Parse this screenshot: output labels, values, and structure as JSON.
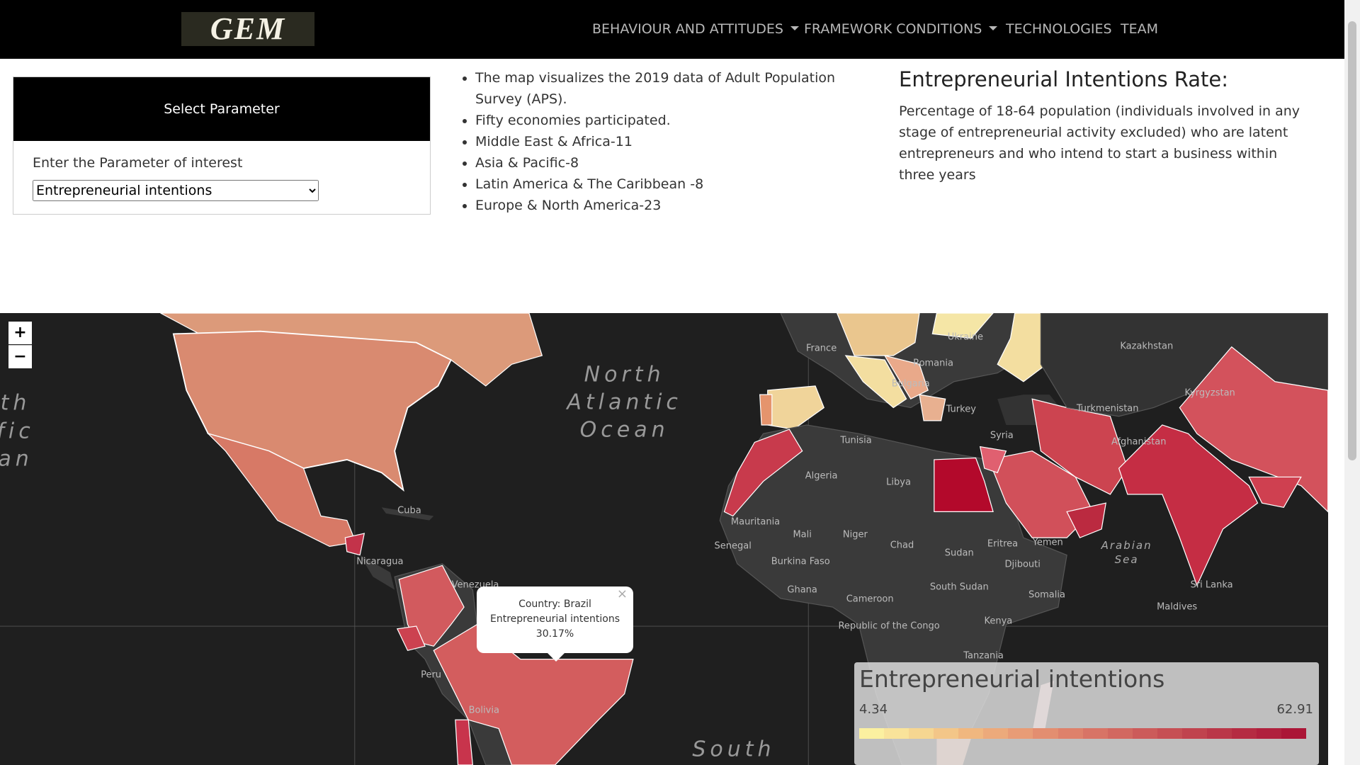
{
  "navbar": {
    "logo": "GEM",
    "items": [
      "BEHAVIOUR AND ATTITUDES",
      "FRAMEWORK CONDITIONS",
      "TECHNOLOGIES",
      "TEAM"
    ]
  },
  "panel": {
    "header": "Select Parameter",
    "label": "Enter the Parameter of interest",
    "selected": "Entrepreneurial intentions"
  },
  "info": {
    "bullets": [
      "The map visualizes the 2019 data of Adult Population Survey (APS).",
      "Fifty economies participated.",
      "Middle East & Africa-11",
      "Asia & Pacific-8",
      "Latin America & The Caribbean -8",
      "Europe & North America-23"
    ]
  },
  "definition": {
    "title": "Entrepreneurial Intentions Rate:",
    "text": "Percentage of 18-64 population (individuals involved in any stage of entrepreneurial activity excluded) who are latent entrepreneurs and who intend to start a business within three years"
  },
  "map": {
    "zoom_in": "+",
    "zoom_out": "−",
    "labels": [
      "North",
      "Atlantic",
      "Ocean",
      "th",
      "fic",
      "an",
      "Ukraine",
      "Kazakhstan",
      "France",
      "Romania",
      "Bulgaria",
      "Turkey",
      "Turkmenistan",
      "Kyrgyzstan",
      "Afghanistan",
      "Syria",
      "Tunisia",
      "Algeria",
      "Libya",
      "Mauritania",
      "Mali",
      "Niger",
      "Chad",
      "Sudan",
      "Senegal",
      "Cuba",
      "Nicaragua",
      "Venezuela",
      "Bolivia",
      "Yemen",
      "Eritrea",
      "Djibouti",
      "Somalia",
      "South Sudan",
      "Cameroon",
      "Kenya",
      "Tanzania",
      "Arabian",
      "Sea",
      "Sri Lanka",
      "Maldives",
      "South",
      "Peru",
      "Burkina Faso",
      "Ghana",
      "Republic of the Congo"
    ],
    "tooltip": {
      "country": "Country: Brazil",
      "parameter": "Entrepreneurial intentions",
      "value": "30.17%",
      "close": "×"
    },
    "legend": {
      "title": "Entrepreneurial intentions",
      "min": 4.34,
      "max": 62.91
    }
  }
}
